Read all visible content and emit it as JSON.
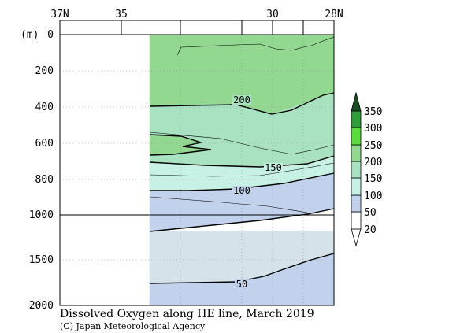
{
  "chart_data": {
    "type": "contour",
    "title": "Dissolved Oxygen along HE line, March 2019",
    "credit": "(C) Japan Meteorological Agency",
    "x_axis": {
      "range_lat": [
        37,
        28
      ],
      "ticks": [
        {
          "lat": 37,
          "label": "37N"
        },
        {
          "lat": 35,
          "label": "35"
        },
        {
          "lat": 33,
          "label": ""
        },
        {
          "lat": 31,
          "label": ""
        },
        {
          "lat": 30,
          "label": "30"
        },
        {
          "lat": 29,
          "label": ""
        },
        {
          "lat": 28,
          "label": "28N"
        }
      ]
    },
    "y_axis": {
      "unit_label": "(m)",
      "depth_ticks": [
        {
          "depth": 0,
          "label": "0"
        },
        {
          "depth": 200,
          "label": "200"
        },
        {
          "depth": 400,
          "label": "400"
        },
        {
          "depth": 600,
          "label": "600"
        },
        {
          "depth": 800,
          "label": "800"
        },
        {
          "depth": 1000,
          "label": "1000"
        },
        {
          "depth": 1500,
          "label": "1500"
        },
        {
          "depth": 2000,
          "label": "2000"
        }
      ],
      "scale_break_depth": 1000
    },
    "data_coverage_lat": [
      33,
      28
    ],
    "contour_labels": [
      {
        "text": "200",
        "lat": 30.7,
        "depth": 370
      },
      {
        "text": "150",
        "lat": 30.0,
        "depth": 740
      },
      {
        "text": "100",
        "lat": 30.8,
        "depth": 870
      },
      {
        "text": "50",
        "lat": 31.0,
        "depth": 1760
      }
    ],
    "colorbar": {
      "levels": [
        20,
        50,
        100,
        150,
        200,
        250,
        300,
        350
      ],
      "labels": [
        "20",
        "50",
        "100",
        "150",
        "200",
        "250",
        "300",
        "350"
      ],
      "colors": [
        "#d6e2ea",
        "#c2d2ec",
        "#c6f1e4",
        "#a8e2c0",
        "#92d890",
        "#5cdc3c",
        "#2e9e3a",
        "#1c4e26"
      ]
    },
    "colors": {
      "band_150_200": "#a8e2c0",
      "band_200_250": "#92d890",
      "band_100_150": "#c6f1e4",
      "band_50_100": "#c2d2ec",
      "band_20_50": "#d6e2ea"
    }
  }
}
